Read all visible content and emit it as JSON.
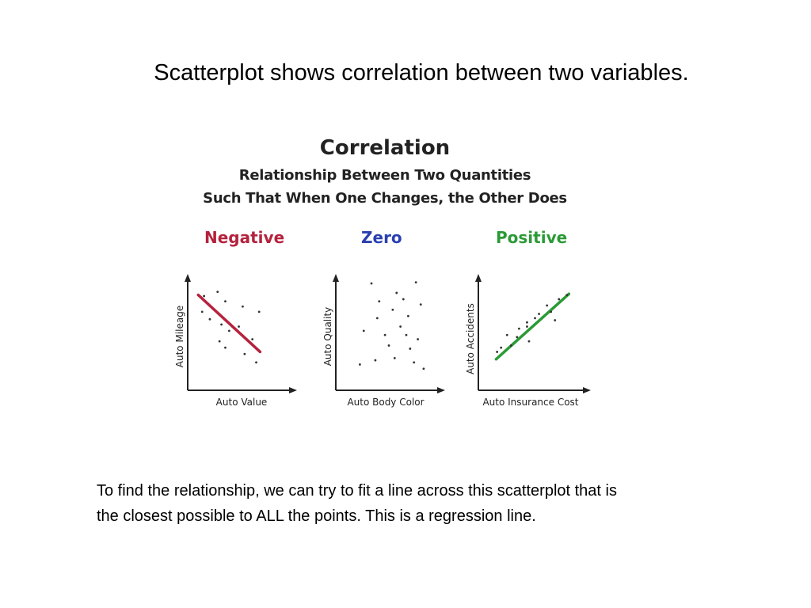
{
  "slide": {
    "title": "Scatterplot shows correlation between two variables.",
    "caption_line1": "To find the relationship, we can try to fit a line across this scatterplot  that is",
    "caption_line2": "the closest possible to ALL the points. This is a regression line."
  },
  "figure": {
    "title": "Correlation",
    "subtitle_line1": "Relationship Between Two Quantities",
    "subtitle_line2": "Such That When One Changes, the Other Does"
  },
  "chart_data": [
    {
      "type": "scatter",
      "title": "Negative",
      "title_color": "#b5223d",
      "xlabel": "Auto Value",
      "ylabel": "Auto Mileage",
      "xlim": [
        0,
        10
      ],
      "ylim": [
        0,
        10
      ],
      "grid": false,
      "x": [
        1.2,
        2.6,
        3.4,
        5.2,
        6.9,
        1.0,
        1.8,
        3.0,
        3.8,
        4.8,
        6.2,
        2.8,
        3.4,
        5.4,
        6.6
      ],
      "y": [
        8.5,
        8.9,
        8.0,
        7.5,
        7.0,
        7.0,
        6.3,
        5.8,
        5.2,
        5.6,
        4.4,
        4.2,
        3.6,
        3.0,
        2.2
      ],
      "regression_line": {
        "x": [
          0.6,
          7.0
        ],
        "y": [
          8.6,
          3.2
        ],
        "color": "#b5223d"
      }
    },
    {
      "type": "scatter",
      "title": "Zero",
      "title_color": "#2a3fb0",
      "xlabel": "Auto Body Color",
      "ylabel": "Auto Quality",
      "xlim": [
        0,
        10
      ],
      "ylim": [
        0,
        10
      ],
      "grid": false,
      "x": [
        3.2,
        5.8,
        7.8,
        4.0,
        6.5,
        8.3,
        5.4,
        7.0,
        3.8,
        6.2,
        2.4,
        4.6,
        6.8,
        8.0,
        5.0,
        7.2,
        2.0,
        3.6,
        5.6,
        7.6,
        8.6
      ],
      "y": [
        9.7,
        8.8,
        9.8,
        8.0,
        8.2,
        7.7,
        7.2,
        6.6,
        6.4,
        5.6,
        5.2,
        4.8,
        4.8,
        4.4,
        3.8,
        3.5,
        2.0,
        2.4,
        2.6,
        2.2,
        1.6
      ],
      "regression_line": null
    },
    {
      "type": "scatter",
      "title": "Positive",
      "title_color": "#2b9a36",
      "xlabel": "Auto Insurance Cost",
      "ylabel": "Auto Accidents",
      "xlim": [
        0,
        10
      ],
      "ylim": [
        0,
        10
      ],
      "grid": false,
      "x": [
        1.8,
        2.8,
        3.4,
        4.4,
        5.2,
        6.4,
        3.6,
        4.4,
        5.6,
        6.8,
        7.6,
        8.4,
        1.4,
        4.6,
        7.2,
        2.4
      ],
      "y": [
        3.6,
        3.8,
        4.6,
        5.6,
        6.4,
        7.6,
        5.4,
        6.0,
        6.8,
        7.0,
        8.2,
        8.6,
        3.2,
        4.2,
        6.2,
        4.8
      ],
      "regression_line": {
        "x": [
          1.3,
          8.6
        ],
        "y": [
          2.5,
          8.7
        ],
        "color": "#2b9a36"
      }
    }
  ],
  "colors": {
    "negative": "#b5223d",
    "zero": "#2a3fb0",
    "positive": "#2b9a36",
    "axis": "#222222"
  }
}
